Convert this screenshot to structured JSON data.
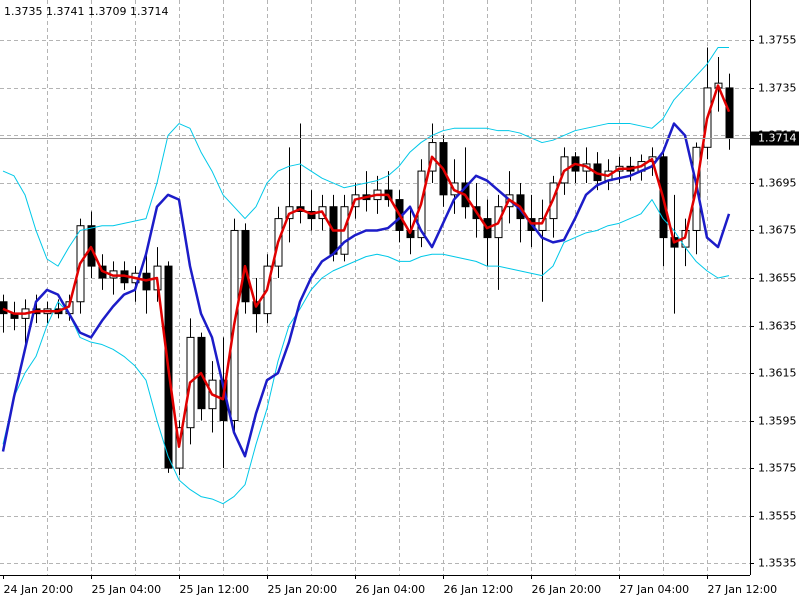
{
  "chart_data": {
    "type": "candlestick",
    "categories": [
      "24 Jan 20:00",
      null,
      null,
      null,
      null,
      null,
      null,
      null,
      "25 Jan 04:00",
      null,
      null,
      null,
      null,
      null,
      null,
      null,
      "25 Jan 12:00",
      null,
      null,
      null,
      null,
      null,
      null,
      null,
      "25 Jan 20:00",
      null,
      null,
      null,
      null,
      null,
      null,
      null,
      "26 Jan 04:00",
      null,
      null,
      null,
      null,
      null,
      null,
      null,
      "26 Jan 12:00",
      null,
      null,
      null,
      null,
      null,
      null,
      null,
      "26 Jan 20:00",
      null,
      null,
      null,
      null,
      null,
      null,
      null,
      "27 Jan 04:00",
      null,
      null,
      null,
      null,
      null,
      null,
      null,
      "27 Jan 12:00",
      null,
      null
    ],
    "open": [
      1.3645,
      1.364,
      1.3638,
      1.3642,
      1.364,
      1.3642,
      1.364,
      1.3645,
      1.3677,
      1.366,
      1.3655,
      1.3658,
      1.3653,
      1.3657,
      1.365,
      1.366,
      1.3575,
      1.3592,
      1.363,
      1.36,
      1.3612,
      1.3595,
      1.3675,
      1.3645,
      1.364,
      1.366,
      1.368,
      1.3685,
      1.3683,
      1.368,
      1.3685,
      1.3665,
      1.3685,
      1.369,
      1.3688,
      1.3692,
      1.3688,
      1.3675,
      1.3672,
      1.37,
      1.3712,
      1.369,
      1.3695,
      1.3685,
      1.368,
      1.3672,
      1.3685,
      1.369,
      1.368,
      1.3675,
      1.368,
      1.3695,
      1.3706,
      1.37,
      1.3703,
      1.3696,
      1.37,
      1.3702,
      1.37,
      1.3704,
      1.3706,
      1.3672,
      1.3668,
      1.3675,
      1.371,
      1.3735,
      1.3735
    ],
    "high": [
      1.3648,
      1.3645,
      1.3646,
      1.3648,
      1.3645,
      1.3646,
      1.3648,
      1.368,
      1.3683,
      1.3665,
      1.3662,
      1.3662,
      1.366,
      1.3665,
      1.3668,
      1.3662,
      1.3595,
      1.3638,
      1.3632,
      1.362,
      1.363,
      1.368,
      1.3678,
      1.3655,
      1.3665,
      1.3685,
      1.371,
      1.372,
      1.3692,
      1.369,
      1.369,
      1.369,
      1.3695,
      1.37,
      1.3698,
      1.37,
      1.3692,
      1.3685,
      1.3705,
      1.372,
      1.3715,
      1.3705,
      1.371,
      1.3695,
      1.3688,
      1.369,
      1.37,
      1.3695,
      1.369,
      1.3688,
      1.3698,
      1.371,
      1.3708,
      1.371,
      1.3708,
      1.3705,
      1.3706,
      1.3706,
      1.3707,
      1.371,
      1.3708,
      1.369,
      1.368,
      1.3712,
      1.3752,
      1.3748,
      1.3741
    ],
    "low": [
      1.3632,
      1.3633,
      1.3625,
      1.3636,
      1.3636,
      1.3638,
      1.3637,
      1.364,
      1.3655,
      1.365,
      1.3648,
      1.365,
      1.3645,
      1.364,
      1.3645,
      1.3573,
      1.3572,
      1.3585,
      1.3595,
      1.359,
      1.3575,
      1.359,
      1.364,
      1.3632,
      1.3636,
      1.3655,
      1.367,
      1.3678,
      1.3675,
      1.3675,
      1.3662,
      1.3662,
      1.368,
      1.3683,
      1.3682,
      1.3685,
      1.367,
      1.3665,
      1.3668,
      1.3695,
      1.3685,
      1.3682,
      1.368,
      1.3672,
      1.366,
      1.365,
      1.3678,
      1.367,
      1.3668,
      1.3645,
      1.3672,
      1.369,
      1.3695,
      1.3695,
      1.3692,
      1.3692,
      1.3695,
      1.3696,
      1.3696,
      1.3698,
      1.366,
      1.364,
      1.366,
      1.3665,
      1.3705,
      1.3725,
      1.3709
    ],
    "close": [
      1.364,
      1.3638,
      1.3642,
      1.364,
      1.3642,
      1.364,
      1.3645,
      1.3677,
      1.366,
      1.3655,
      1.3658,
      1.3653,
      1.3657,
      1.365,
      1.366,
      1.3575,
      1.3592,
      1.363,
      1.36,
      1.3612,
      1.3595,
      1.3675,
      1.3645,
      1.364,
      1.366,
      1.368,
      1.3685,
      1.3683,
      1.368,
      1.3685,
      1.3665,
      1.3685,
      1.369,
      1.3688,
      1.3692,
      1.3688,
      1.3675,
      1.3672,
      1.37,
      1.3712,
      1.369,
      1.3695,
      1.3685,
      1.368,
      1.3672,
      1.3685,
      1.369,
      1.368,
      1.3675,
      1.368,
      1.3695,
      1.3706,
      1.37,
      1.3703,
      1.3696,
      1.37,
      1.3702,
      1.37,
      1.3704,
      1.3706,
      1.3672,
      1.3668,
      1.3675,
      1.371,
      1.3735,
      1.3737,
      1.3714
    ],
    "series": [
      {
        "color": "#00c8e8",
        "width": 1,
        "values": [
          1.37,
          1.3698,
          1.369,
          1.3675,
          1.3663,
          1.366,
          1.3668,
          1.3675,
          1.3676,
          1.3677,
          1.3677,
          1.3678,
          1.3679,
          1.368,
          1.3695,
          1.3715,
          1.372,
          1.3718,
          1.3708,
          1.37,
          1.369,
          1.3685,
          1.368,
          1.3685,
          1.3695,
          1.37,
          1.3702,
          1.3703,
          1.37,
          1.3697,
          1.3695,
          1.3693,
          1.3694,
          1.3695,
          1.3696,
          1.3698,
          1.3702,
          1.3708,
          1.3712,
          1.3715,
          1.3717,
          1.3718,
          1.3718,
          1.3718,
          1.3718,
          1.3717,
          1.3717,
          1.3716,
          1.3714,
          1.3712,
          1.3713,
          1.3715,
          1.3717,
          1.3718,
          1.3719,
          1.372,
          1.372,
          1.372,
          1.3719,
          1.3718,
          1.3722,
          1.373,
          1.3735,
          1.374,
          1.3745,
          1.3752,
          1.3752
        ]
      },
      {
        "color": "#00c8e8",
        "width": 1,
        "values": [
          1.3585,
          1.3605,
          1.3615,
          1.3622,
          1.3635,
          1.3645,
          1.364,
          1.363,
          1.3628,
          1.3627,
          1.3625,
          1.3622,
          1.3618,
          1.3612,
          1.3595,
          1.358,
          1.357,
          1.3566,
          1.3563,
          1.3562,
          1.356,
          1.3563,
          1.3568,
          1.3585,
          1.36,
          1.362,
          1.3635,
          1.3642,
          1.365,
          1.3655,
          1.3658,
          1.366,
          1.3662,
          1.3664,
          1.3665,
          1.3664,
          1.3662,
          1.3662,
          1.3664,
          1.3665,
          1.3665,
          1.3664,
          1.3663,
          1.3662,
          1.366,
          1.366,
          1.3659,
          1.3658,
          1.3657,
          1.3656,
          1.366,
          1.367,
          1.3672,
          1.3674,
          1.3675,
          1.3677,
          1.3678,
          1.368,
          1.3682,
          1.3688,
          1.368,
          1.3675,
          1.3668,
          1.3662,
          1.3658,
          1.3655,
          1.3656
        ]
      },
      {
        "color": "#1c1cc8",
        "width": 2.5,
        "values": [
          1.3582,
          1.3605,
          1.3625,
          1.3645,
          1.365,
          1.3648,
          1.364,
          1.3632,
          1.363,
          1.3637,
          1.3643,
          1.3648,
          1.365,
          1.3665,
          1.3685,
          1.369,
          1.3688,
          1.366,
          1.364,
          1.363,
          1.361,
          1.359,
          1.358,
          1.3598,
          1.3612,
          1.3615,
          1.3628,
          1.3645,
          1.3655,
          1.3662,
          1.3665,
          1.367,
          1.3673,
          1.3675,
          1.3675,
          1.3676,
          1.368,
          1.3685,
          1.3675,
          1.3668,
          1.3678,
          1.3688,
          1.3693,
          1.3698,
          1.3696,
          1.3692,
          1.3688,
          1.3684,
          1.3678,
          1.3672,
          1.367,
          1.3671,
          1.368,
          1.369,
          1.3694,
          1.3696,
          1.3697,
          1.3698,
          1.37,
          1.3702,
          1.3708,
          1.372,
          1.3715,
          1.3695,
          1.3672,
          1.3668,
          1.3682
        ]
      },
      {
        "color": "#e00000",
        "width": 2.5,
        "values": [
          1.3642,
          1.364,
          1.364,
          1.3641,
          1.3641,
          1.3641,
          1.3643,
          1.3661,
          1.3668,
          1.3658,
          1.3656,
          1.3656,
          1.3655,
          1.3654,
          1.3655,
          1.3618,
          1.3584,
          1.3611,
          1.3615,
          1.3606,
          1.3604,
          1.3635,
          1.366,
          1.3643,
          1.365,
          1.367,
          1.3682,
          1.3684,
          1.3682,
          1.3683,
          1.3675,
          1.3675,
          1.3688,
          1.3689,
          1.369,
          1.369,
          1.3682,
          1.3674,
          1.3686,
          1.3706,
          1.3701,
          1.3692,
          1.369,
          1.3683,
          1.3676,
          1.3678,
          1.3688,
          1.3685,
          1.3678,
          1.3678,
          1.3688,
          1.37,
          1.3703,
          1.3702,
          1.3699,
          1.3698,
          1.3701,
          1.3701,
          1.3702,
          1.3705,
          1.3689,
          1.367,
          1.3672,
          1.3692,
          1.3722,
          1.3736,
          1.3725
        ]
      }
    ],
    "ylim": [
      1.353,
      1.3772
    ],
    "yticks": [
      1.3535,
      1.3555,
      1.3575,
      1.3595,
      1.3615,
      1.3635,
      1.3655,
      1.3675,
      1.3695,
      1.3715,
      1.3735,
      1.3755
    ],
    "grid": true,
    "up_color": "#ffffff",
    "down_color": "#000000"
  }
}
